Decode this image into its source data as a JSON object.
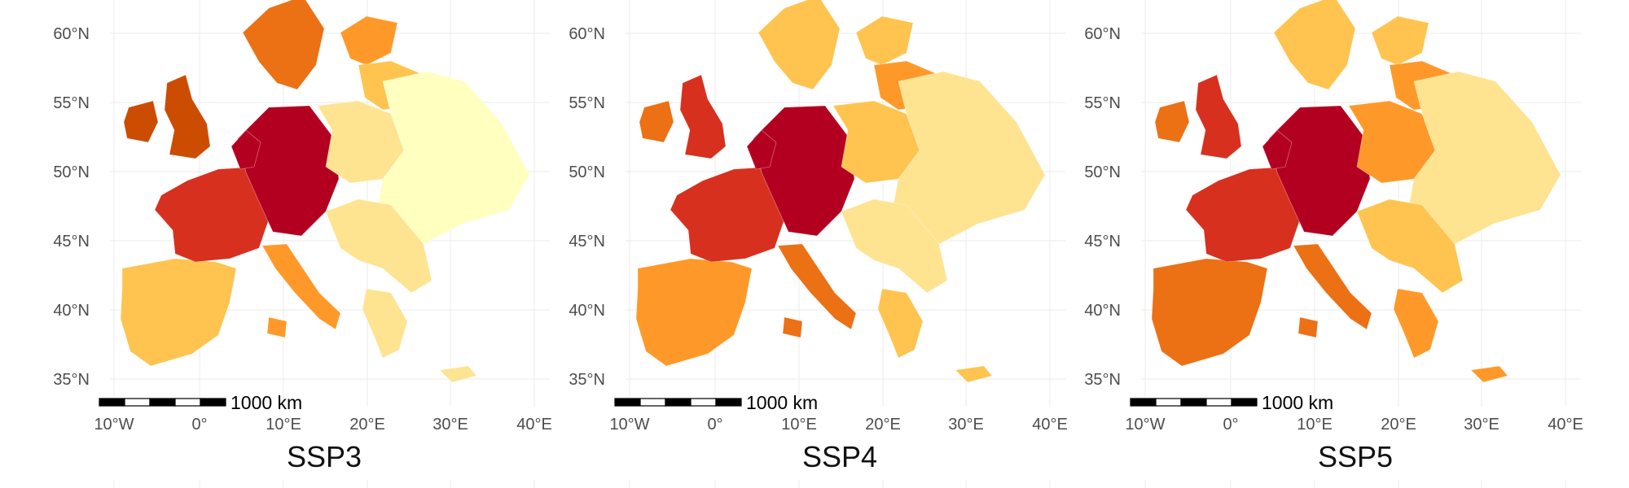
{
  "figure": {
    "panels": [
      {
        "title": "SSP3",
        "scale_bar_label": "1000 km",
        "lat_labels": [
          "60°N",
          "55°N",
          "50°N",
          "45°N",
          "40°N",
          "35°N"
        ],
        "lon_labels": [
          "10°W",
          "0°",
          "10°E",
          "20°E",
          "30°E",
          "40°E"
        ],
        "region_levels": {
          "iberia": 0.35,
          "france": 0.8,
          "central_core": 1.0,
          "benelux": 0.95,
          "britain": 0.75,
          "ireland": 0.65,
          "italy": 0.45,
          "scandinavia": 0.55,
          "finland": 0.45,
          "baltics": 0.35,
          "poland": 0.12,
          "eastern": 0.05,
          "balkans": 0.1,
          "greece": 0.2
        }
      },
      {
        "title": "SSP4",
        "scale_bar_label": "1000 km",
        "lat_labels": [
          "60°N",
          "55°N",
          "50°N",
          "45°N",
          "40°N",
          "35°N"
        ],
        "lon_labels": [
          "10°W",
          "0°",
          "10°E",
          "20°E",
          "30°E",
          "40°E"
        ],
        "region_levels": {
          "iberia": 0.4,
          "france": 0.8,
          "central_core": 1.0,
          "benelux": 0.95,
          "britain": 0.8,
          "ireland": 0.55,
          "italy": 0.55,
          "scandinavia": 0.3,
          "finland": 0.35,
          "baltics": 0.45,
          "poland": 0.35,
          "eastern": 0.1,
          "balkans": 0.15,
          "greece": 0.35
        }
      },
      {
        "title": "SSP5",
        "scale_bar_label": "1000 km",
        "lat_labels": [
          "60°N",
          "55°N",
          "50°N",
          "45°N",
          "40°N",
          "35°N"
        ],
        "lon_labels": [
          "10°W",
          "0°",
          "10°E",
          "20°E",
          "30°E",
          "40°E"
        ],
        "region_levels": {
          "iberia": 0.5,
          "france": 0.8,
          "central_core": 1.0,
          "benelux": 0.95,
          "britain": 0.8,
          "ireland": 0.55,
          "italy": 0.6,
          "scandinavia": 0.3,
          "finland": 0.3,
          "baltics": 0.4,
          "poland": 0.4,
          "eastern": 0.1,
          "balkans": 0.25,
          "greece": 0.45
        }
      }
    ],
    "color_ramp": [
      "#ffffbf",
      "#fee391",
      "#fec44f",
      "#fe9929",
      "#ec7014",
      "#cc4c02",
      "#d7301f",
      "#b30021"
    ]
  }
}
